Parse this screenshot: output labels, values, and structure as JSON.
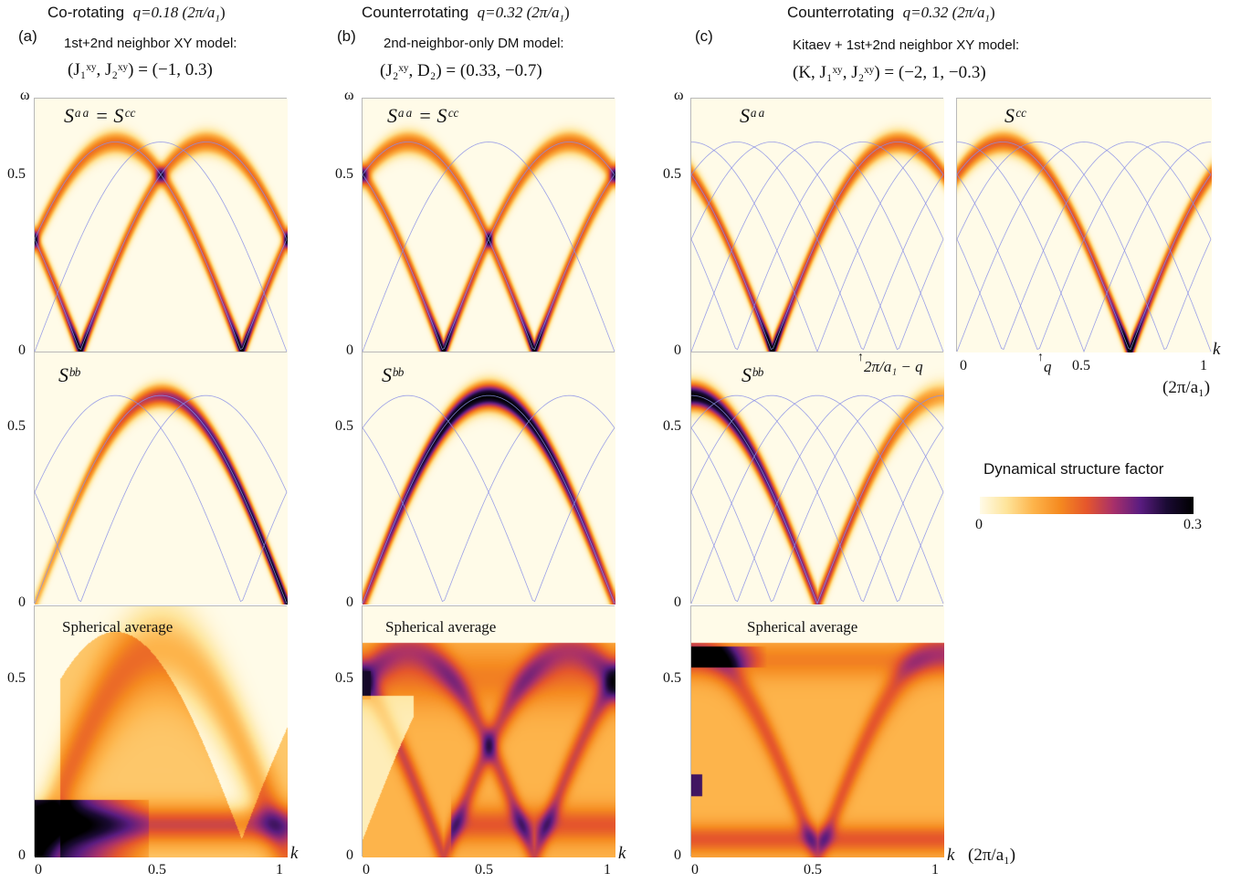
{
  "columns": [
    {
      "letter": "(a)",
      "rotation": "Co-rotating",
      "q_label": "q=0.18 (2π/a",
      "q_label_sub": "1",
      "q_label_end": ")",
      "model": "1st+2nd neighbor XY model:",
      "params": "(J₁ˣʸ, J₂ˣʸ) = (−1, 0.3)"
    },
    {
      "letter": "(b)",
      "rotation": "Counterrotating",
      "q_label": "q=0.32 (2π/a",
      "q_label_sub": "1",
      "q_label_end": ")",
      "model": "2nd-neighbor-only DM model:",
      "params": "(J₂ˣʸ, D₂) = (0.33, −0.7)"
    },
    {
      "letter": "(c)",
      "rotation": "Counterrotating",
      "q_label": "q=0.32 (2π/a",
      "q_label_sub": "1",
      "q_label_end": ")",
      "model": "Kitaev + 1st+2nd neighbor XY model:",
      "params": "(K, J₁ˣʸ, J₂ˣʸ) = (−2, 1, −0.3)"
    }
  ],
  "panel_labels": {
    "saa_scc": "Sᵃᵃ = Sᶜᶜ",
    "saa": "Sᵃᵃ",
    "scc": "Sᶜᶜ",
    "sbb": "Sᵇᵇ",
    "spherical": "Spherical average"
  },
  "axes": {
    "omega": "ω",
    "k": "k",
    "k_unit": "(2π/a₁)",
    "y_ticks": [
      "0",
      "0.5"
    ],
    "x_ticks": [
      "0",
      "0.5",
      "1"
    ],
    "annot_c": "2π/a₁ − q",
    "annot_q": "q"
  },
  "colorbar": {
    "title": "Dynamical structure factor",
    "min_label": "0",
    "max_label": "0.3",
    "colors": [
      "#fffbe8",
      "#fee49a",
      "#fdb44b",
      "#f58a20",
      "#e5562c",
      "#a8306a",
      "#5a1c80",
      "#1a0a33",
      "#000000"
    ],
    "range": [
      0,
      0.3
    ]
  },
  "chart_data": [
    {
      "type": "heatmap",
      "panel": "a-top",
      "component": "Saa=Scc",
      "model": "XY",
      "q": 0.18,
      "xlim": [
        0,
        1
      ],
      "ylim": [
        0,
        0.7
      ],
      "bright_branches": [
        "k+q",
        "k-q"
      ],
      "peak_intensity": 0.3
    },
    {
      "type": "heatmap",
      "panel": "a-mid",
      "component": "Sbb",
      "model": "XY",
      "q": 0.18,
      "xlim": [
        0,
        1
      ],
      "ylim": [
        0,
        0.7
      ],
      "bright_branches": [
        "k"
      ],
      "peak_intensity": 0.3
    },
    {
      "type": "heatmap",
      "panel": "a-bot",
      "component": "spherical average",
      "model": "XY",
      "q": 0.18,
      "xlim": [
        0,
        1
      ],
      "ylim": [
        0,
        0.7
      ]
    },
    {
      "type": "heatmap",
      "panel": "b-top",
      "component": "Saa=Scc",
      "model": "DM",
      "q": 0.32,
      "xlim": [
        0,
        1
      ],
      "ylim": [
        0,
        0.7
      ],
      "bright_branches": [
        "k+q",
        "k-q"
      ],
      "peak_intensity": 0.3
    },
    {
      "type": "heatmap",
      "panel": "b-mid",
      "component": "Sbb",
      "model": "DM",
      "q": 0.32,
      "xlim": [
        0,
        1
      ],
      "ylim": [
        0,
        0.7
      ],
      "bright_branches": [
        "k"
      ],
      "peak_intensity": 0.3
    },
    {
      "type": "heatmap",
      "panel": "b-bot",
      "component": "spherical average",
      "model": "DM",
      "q": 0.32,
      "xlim": [
        0,
        1
      ],
      "ylim": [
        0,
        0.7
      ]
    },
    {
      "type": "heatmap",
      "panel": "c-top-left",
      "component": "Saa",
      "model": "Kitaev",
      "q": 0.32,
      "xlim": [
        0,
        1
      ],
      "ylim": [
        0,
        0.7
      ],
      "bright_branches": [
        "k-q"
      ],
      "peak_intensity": 0.3
    },
    {
      "type": "heatmap",
      "panel": "c-top-right",
      "component": "Scc",
      "model": "Kitaev",
      "q": 0.32,
      "xlim": [
        0,
        1
      ],
      "ylim": [
        0,
        0.7
      ],
      "bright_branches": [
        "k+q"
      ],
      "peak_intensity": 0.3
    },
    {
      "type": "heatmap",
      "panel": "c-mid",
      "component": "Sbb",
      "model": "Kitaev",
      "q": 0.32,
      "xlim": [
        0,
        1
      ],
      "ylim": [
        0,
        0.7
      ],
      "bright_branches": [
        "k"
      ],
      "peak_intensity": 0.3
    },
    {
      "type": "heatmap",
      "panel": "c-bot",
      "component": "spherical average",
      "model": "Kitaev",
      "q": 0.32,
      "xlim": [
        0,
        1
      ],
      "ylim": [
        0,
        0.7
      ]
    }
  ]
}
